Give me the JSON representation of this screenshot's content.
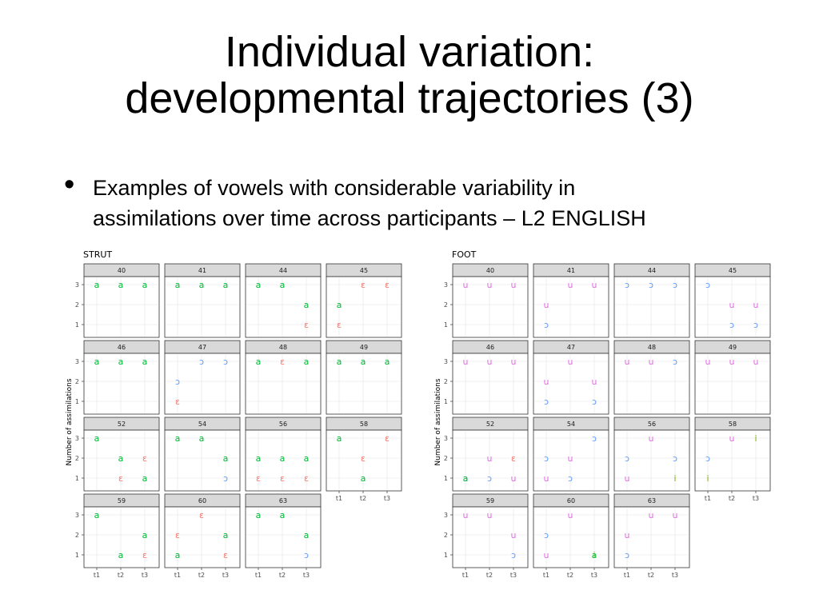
{
  "title_lines": [
    "Individual variation:",
    "developmental trajectories (3)"
  ],
  "bullet_lines": [
    "Examples of vowels with considerable variability in",
    "assimilations over time across participants – L2 ENGLISH"
  ],
  "colors": {
    "a": "#00ba38",
    "ɛ": "#f8766d",
    "ɔ": "#619cff",
    "u": "#e070e0",
    "ʊ": "#e070e0",
    "i": "#7cae00",
    "ə": "#00ba38",
    "ɪ": "#7cae00"
  },
  "chart_data": [
    {
      "type": "scatter",
      "title": "STRUT",
      "xlabel": "",
      "ylabel": "Number of assimilations",
      "x_categories": [
        "t1",
        "t2",
        "t3"
      ],
      "ylim": [
        1,
        3
      ],
      "y_ticks": [
        1,
        2,
        3
      ],
      "grid": true,
      "panels": [
        {
          "label": "40",
          "points": [
            [
              "t1",
              3,
              "a"
            ],
            [
              "t2",
              3,
              "a"
            ],
            [
              "t3",
              3,
              "a"
            ]
          ]
        },
        {
          "label": "41",
          "points": [
            [
              "t1",
              3,
              "a"
            ],
            [
              "t2",
              3,
              "a"
            ],
            [
              "t3",
              3,
              "a"
            ]
          ]
        },
        {
          "label": "44",
          "points": [
            [
              "t1",
              3,
              "a"
            ],
            [
              "t2",
              3,
              "a"
            ],
            [
              "t3",
              2,
              "a"
            ],
            [
              "t3",
              1,
              "ɛ"
            ]
          ]
        },
        {
          "label": "45",
          "points": [
            [
              "t2",
              3,
              "ɛ"
            ],
            [
              "t3",
              3,
              "ɛ"
            ],
            [
              "t1",
              2,
              "a"
            ],
            [
              "t1",
              1,
              "ɛ"
            ]
          ]
        },
        {
          "label": "46",
          "points": [
            [
              "t1",
              3,
              "a"
            ],
            [
              "t2",
              3,
              "a"
            ],
            [
              "t3",
              3,
              "a"
            ]
          ]
        },
        {
          "label": "47",
          "points": [
            [
              "t2",
              3,
              "ɔ"
            ],
            [
              "t3",
              3,
              "ɔ"
            ],
            [
              "t1",
              2,
              "ɔ"
            ],
            [
              "t1",
              1,
              "ɛ"
            ]
          ]
        },
        {
          "label": "48",
          "points": [
            [
              "t1",
              3,
              "a"
            ],
            [
              "t2",
              3,
              "ɛ"
            ],
            [
              "t3",
              3,
              "a"
            ]
          ]
        },
        {
          "label": "49",
          "points": [
            [
              "t1",
              3,
              "a"
            ],
            [
              "t2",
              3,
              "a"
            ],
            [
              "t3",
              3,
              "a"
            ]
          ]
        },
        {
          "label": "52",
          "points": [
            [
              "t1",
              3,
              "a"
            ],
            [
              "t2",
              2,
              "a"
            ],
            [
              "t3",
              2,
              "ɛ"
            ],
            [
              "t2",
              1,
              "ɛ"
            ],
            [
              "t3",
              1,
              "a"
            ]
          ]
        },
        {
          "label": "54",
          "points": [
            [
              "t1",
              3,
              "a"
            ],
            [
              "t2",
              3,
              "a"
            ],
            [
              "t3",
              2,
              "a"
            ],
            [
              "t3",
              1,
              "ɔ"
            ]
          ]
        },
        {
          "label": "56",
          "points": [
            [
              "t1",
              2,
              "a"
            ],
            [
              "t2",
              2,
              "a"
            ],
            [
              "t3",
              2,
              "a"
            ],
            [
              "t1",
              1,
              "ɛ"
            ],
            [
              "t2",
              1,
              "ɛ"
            ],
            [
              "t3",
              1,
              "ɛ"
            ]
          ]
        },
        {
          "label": "58",
          "points": [
            [
              "t1",
              3,
              "a"
            ],
            [
              "t3",
              3,
              "ɛ"
            ],
            [
              "t2",
              2,
              "ɛ"
            ],
            [
              "t2",
              1,
              "a"
            ]
          ]
        },
        {
          "label": "59",
          "points": [
            [
              "t1",
              3,
              "a"
            ],
            [
              "t3",
              2,
              "a"
            ],
            [
              "t2",
              1,
              "a"
            ],
            [
              "t3",
              1,
              "ɛ"
            ]
          ]
        },
        {
          "label": "60",
          "points": [
            [
              "t2",
              3,
              "ɛ"
            ],
            [
              "t1",
              2,
              "ɛ"
            ],
            [
              "t3",
              2,
              "a"
            ],
            [
              "t1",
              1,
              "a"
            ],
            [
              "t3",
              1,
              "ɛ"
            ]
          ]
        },
        {
          "label": "63",
          "points": [
            [
              "t1",
              3,
              "a"
            ],
            [
              "t2",
              3,
              "a"
            ],
            [
              "t3",
              2,
              "a"
            ],
            [
              "t3",
              1,
              "ɔ"
            ]
          ]
        }
      ]
    },
    {
      "type": "scatter",
      "title": "FOOT",
      "xlabel": "",
      "ylabel": "Number of assimilations",
      "x_categories": [
        "t1",
        "t2",
        "t3"
      ],
      "ylim": [
        1,
        3
      ],
      "y_ticks": [
        1,
        2,
        3
      ],
      "grid": true,
      "panels": [
        {
          "label": "40",
          "points": [
            [
              "t1",
              3,
              "u"
            ],
            [
              "t2",
              3,
              "u"
            ],
            [
              "t3",
              3,
              "u"
            ]
          ]
        },
        {
          "label": "41",
          "points": [
            [
              "t2",
              3,
              "u"
            ],
            [
              "t3",
              3,
              "u"
            ],
            [
              "t1",
              2,
              "u"
            ],
            [
              "t1",
              1,
              "ɔ"
            ]
          ]
        },
        {
          "label": "44",
          "points": [
            [
              "t1",
              3,
              "ɔ"
            ],
            [
              "t2",
              3,
              "ɔ"
            ],
            [
              "t3",
              3,
              "ɔ"
            ]
          ]
        },
        {
          "label": "45",
          "points": [
            [
              "t1",
              3,
              "ɔ"
            ],
            [
              "t2",
              2,
              "u"
            ],
            [
              "t3",
              2,
              "u"
            ],
            [
              "t2",
              1,
              "ɔ"
            ],
            [
              "t3",
              1,
              "ɔ"
            ]
          ]
        },
        {
          "label": "46",
          "points": [
            [
              "t1",
              3,
              "u"
            ],
            [
              "t2",
              3,
              "u"
            ],
            [
              "t3",
              3,
              "u"
            ]
          ]
        },
        {
          "label": "47",
          "points": [
            [
              "t2",
              3,
              "u"
            ],
            [
              "t1",
              2,
              "u"
            ],
            [
              "t3",
              2,
              "u"
            ],
            [
              "t1",
              1,
              "ɔ"
            ],
            [
              "t3",
              1,
              "ɔ"
            ]
          ]
        },
        {
          "label": "48",
          "points": [
            [
              "t1",
              3,
              "u"
            ],
            [
              "t2",
              3,
              "u"
            ],
            [
              "t3",
              3,
              "ɔ"
            ]
          ]
        },
        {
          "label": "49",
          "points": [
            [
              "t1",
              3,
              "u"
            ],
            [
              "t2",
              3,
              "u"
            ],
            [
              "t3",
              3,
              "u"
            ]
          ]
        },
        {
          "label": "52",
          "points": [
            [
              "t2",
              2,
              "u"
            ],
            [
              "t3",
              2,
              "ɛ"
            ],
            [
              "t1",
              1,
              "ɔ"
            ],
            [
              "t1",
              1,
              "a"
            ],
            [
              "t2",
              1,
              "ɔ"
            ],
            [
              "t3",
              1,
              "u"
            ]
          ]
        },
        {
          "label": "54",
          "points": [
            [
              "t3",
              3,
              "ɔ"
            ],
            [
              "t1",
              2,
              "ɔ"
            ],
            [
              "t2",
              2,
              "u"
            ],
            [
              "t1",
              1,
              "u"
            ],
            [
              "t2",
              1,
              "ɔ"
            ]
          ]
        },
        {
          "label": "56",
          "points": [
            [
              "t2",
              3,
              "u"
            ],
            [
              "t1",
              2,
              "ɔ"
            ],
            [
              "t3",
              2,
              "ɔ"
            ],
            [
              "t1",
              1,
              "u"
            ],
            [
              "t3",
              1,
              "i"
            ]
          ]
        },
        {
          "label": "58",
          "points": [
            [
              "t2",
              3,
              "u"
            ],
            [
              "t3",
              3,
              "i"
            ],
            [
              "t1",
              2,
              "ɔ"
            ],
            [
              "t1",
              1,
              "i"
            ]
          ]
        },
        {
          "label": "59",
          "points": [
            [
              "t1",
              3,
              "u"
            ],
            [
              "t2",
              3,
              "u"
            ],
            [
              "t3",
              2,
              "u"
            ],
            [
              "t3",
              1,
              "ɔ"
            ]
          ]
        },
        {
          "label": "60",
          "points": [
            [
              "t2",
              3,
              "u"
            ],
            [
              "t1",
              2,
              "ɔ"
            ],
            [
              "t1",
              1,
              "u"
            ],
            [
              "t3",
              1,
              "i"
            ],
            [
              "t3",
              1,
              "a"
            ]
          ]
        },
        {
          "label": "63",
          "points": [
            [
              "t2",
              3,
              "u"
            ],
            [
              "t3",
              3,
              "u"
            ],
            [
              "t1",
              2,
              "u"
            ],
            [
              "t1",
              1,
              "ɔ"
            ]
          ]
        }
      ]
    }
  ]
}
